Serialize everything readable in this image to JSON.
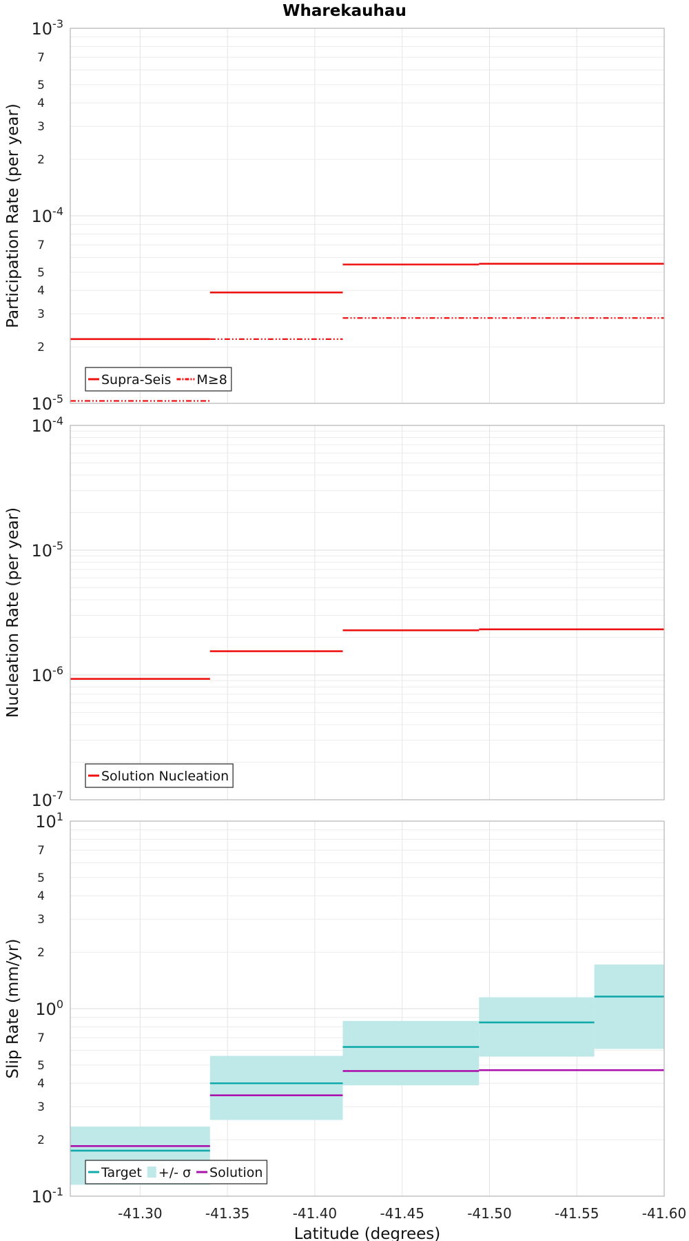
{
  "chart_data": [
    {
      "type": "line",
      "step": true,
      "title": "Wharekauhau",
      "ylabel": "Participation Rate (per year)",
      "xlabel": "",
      "yscale": "log",
      "ylim": [
        1e-05,
        0.001
      ],
      "xlim": [
        -41.26,
        -41.6
      ],
      "xticks": [
        -41.3,
        -41.35,
        -41.4,
        -41.45,
        -41.5,
        -41.55,
        -41.6
      ],
      "show_xtick_labels": false,
      "grid": true,
      "y_tick_labels": {
        "major": [
          {
            "v": 1e-05,
            "base": "10",
            "exp": "-5"
          },
          {
            "v": 0.0001,
            "base": "10",
            "exp": "-4"
          },
          {
            "v": 0.001,
            "base": "10",
            "exp": "-3"
          }
        ],
        "minor": [
          {
            "v": 2e-05,
            "t": "2"
          },
          {
            "v": 3e-05,
            "t": "3"
          },
          {
            "v": 4e-05,
            "t": "4"
          },
          {
            "v": 5e-05,
            "t": "5"
          },
          {
            "v": 7e-05,
            "t": "7"
          },
          {
            "v": 0.0002,
            "t": "2"
          },
          {
            "v": 0.0003,
            "t": "3"
          },
          {
            "v": 0.0004,
            "t": "4"
          },
          {
            "v": 0.0005,
            "t": "5"
          },
          {
            "v": 0.0007,
            "t": "7"
          }
        ]
      },
      "legend": {
        "position": "bottom-left",
        "entries": [
          {
            "label": "Supra-Seis",
            "style": "solid",
            "color": "#ee1111"
          },
          {
            "label": "M≥8",
            "style": "dashdot",
            "color": "#ee1111"
          }
        ]
      },
      "series": [
        {
          "name": "Supra-Seis",
          "color": "#ee1111",
          "style": "solid",
          "width": 2.6,
          "segments": [
            {
              "x0": -41.26,
              "x1": -41.34,
              "y": 2.2e-05
            },
            {
              "x0": -41.34,
              "x1": -41.416,
              "y": 3.9e-05
            },
            {
              "x0": -41.416,
              "x1": -41.494,
              "y": 5.5e-05
            },
            {
              "x0": -41.494,
              "x1": -41.6,
              "y": 5.55e-05
            }
          ]
        },
        {
          "name": "M≥8",
          "color": "#ee1111",
          "style": "dashdot",
          "width": 2.2,
          "segments": [
            {
              "x0": -41.26,
              "x1": -41.34,
              "y": 1.03e-05
            },
            {
              "x0": -41.34,
              "x1": -41.416,
              "y": 2.2e-05
            },
            {
              "x0": -41.416,
              "x1": -41.6,
              "y": 2.85e-05
            }
          ]
        }
      ]
    },
    {
      "type": "line",
      "step": true,
      "title": "",
      "ylabel": "Nucleation Rate (per year)",
      "xlabel": "",
      "yscale": "log",
      "ylim": [
        1e-07,
        0.0001
      ],
      "xlim": [
        -41.26,
        -41.6
      ],
      "xticks": [
        -41.3,
        -41.35,
        -41.4,
        -41.45,
        -41.5,
        -41.55,
        -41.6
      ],
      "show_xtick_labels": false,
      "grid": true,
      "y_tick_labels": {
        "major": [
          {
            "v": 1e-07,
            "base": "10",
            "exp": "-7"
          },
          {
            "v": 1e-06,
            "base": "10",
            "exp": "-6"
          },
          {
            "v": 1e-05,
            "base": "10",
            "exp": "-5"
          },
          {
            "v": 0.0001,
            "base": "10",
            "exp": "-4"
          }
        ],
        "minor": []
      },
      "legend": {
        "position": "bottom-left",
        "entries": [
          {
            "label": "Solution Nucleation",
            "style": "solid",
            "color": "#ee1111"
          }
        ]
      },
      "series": [
        {
          "name": "Solution Nucleation",
          "color": "#ee1111",
          "style": "solid",
          "width": 2.6,
          "segments": [
            {
              "x0": -41.26,
              "x1": -41.34,
              "y": 9.3e-07
            },
            {
              "x0": -41.34,
              "x1": -41.416,
              "y": 1.55e-06
            },
            {
              "x0": -41.416,
              "x1": -41.494,
              "y": 2.28e-06
            },
            {
              "x0": -41.494,
              "x1": -41.6,
              "y": 2.32e-06
            }
          ]
        }
      ]
    },
    {
      "type": "line",
      "step": true,
      "title": "",
      "ylabel": "Slip Rate (mm/yr)",
      "xlabel": "Latitude (degrees)",
      "yscale": "log",
      "ylim": [
        0.1,
        10
      ],
      "xlim": [
        -41.26,
        -41.6
      ],
      "xticks": [
        -41.3,
        -41.35,
        -41.4,
        -41.45,
        -41.5,
        -41.55,
        -41.6
      ],
      "xtick_labels": [
        "-41.30",
        "-41.35",
        "-41.40",
        "-41.45",
        "-41.50",
        "-41.55",
        "-41.60"
      ],
      "show_xtick_labels": true,
      "grid": true,
      "y_tick_labels": {
        "major": [
          {
            "v": 0.1,
            "base": "10",
            "exp": "-1"
          },
          {
            "v": 1,
            "base": "10",
            "exp": "0"
          },
          {
            "v": 10,
            "base": "10",
            "exp": "1"
          }
        ],
        "minor": [
          {
            "v": 0.2,
            "t": "2"
          },
          {
            "v": 0.3,
            "t": "3"
          },
          {
            "v": 0.4,
            "t": "4"
          },
          {
            "v": 0.5,
            "t": "5"
          },
          {
            "v": 0.7,
            "t": "7"
          },
          {
            "v": 2,
            "t": "2"
          },
          {
            "v": 3,
            "t": "3"
          },
          {
            "v": 4,
            "t": "4"
          },
          {
            "v": 5,
            "t": "5"
          },
          {
            "v": 7,
            "t": "7"
          }
        ]
      },
      "legend": {
        "position": "bottom-left",
        "entries": [
          {
            "label": "Target",
            "style": "solid",
            "color": "#11aaaa"
          },
          {
            "label": "+/- σ",
            "style": "band",
            "color": "#bfe9e8"
          },
          {
            "label": "Solution",
            "style": "solid",
            "color": "#aa11aa"
          }
        ]
      },
      "bands": [
        {
          "name": "+/- σ",
          "color": "#bfe9e8",
          "segments": [
            {
              "x0": -41.26,
              "x1": -41.34,
              "lo": 0.115,
              "hi": 0.235
            },
            {
              "x0": -41.34,
              "x1": -41.416,
              "lo": 0.255,
              "hi": 0.56
            },
            {
              "x0": -41.416,
              "x1": -41.494,
              "lo": 0.39,
              "hi": 0.86
            },
            {
              "x0": -41.494,
              "x1": -41.56,
              "lo": 0.555,
              "hi": 1.15
            },
            {
              "x0": -41.56,
              "x1": -41.6,
              "lo": 0.61,
              "hi": 1.72
            }
          ]
        }
      ],
      "series": [
        {
          "name": "Target",
          "color": "#11aaaa",
          "style": "solid",
          "width": 2.6,
          "segments": [
            {
              "x0": -41.26,
              "x1": -41.34,
              "y": 0.175
            },
            {
              "x0": -41.34,
              "x1": -41.416,
              "y": 0.4
            },
            {
              "x0": -41.416,
              "x1": -41.494,
              "y": 0.625
            },
            {
              "x0": -41.494,
              "x1": -41.56,
              "y": 0.845
            },
            {
              "x0": -41.56,
              "x1": -41.6,
              "y": 1.16
            }
          ]
        },
        {
          "name": "Solution",
          "color": "#aa11aa",
          "style": "solid",
          "width": 2.6,
          "segments": [
            {
              "x0": -41.26,
              "x1": -41.34,
              "y": 0.185
            },
            {
              "x0": -41.34,
              "x1": -41.416,
              "y": 0.345
            },
            {
              "x0": -41.416,
              "x1": -41.494,
              "y": 0.465
            },
            {
              "x0": -41.494,
              "x1": -41.6,
              "y": 0.47
            }
          ]
        }
      ]
    }
  ]
}
